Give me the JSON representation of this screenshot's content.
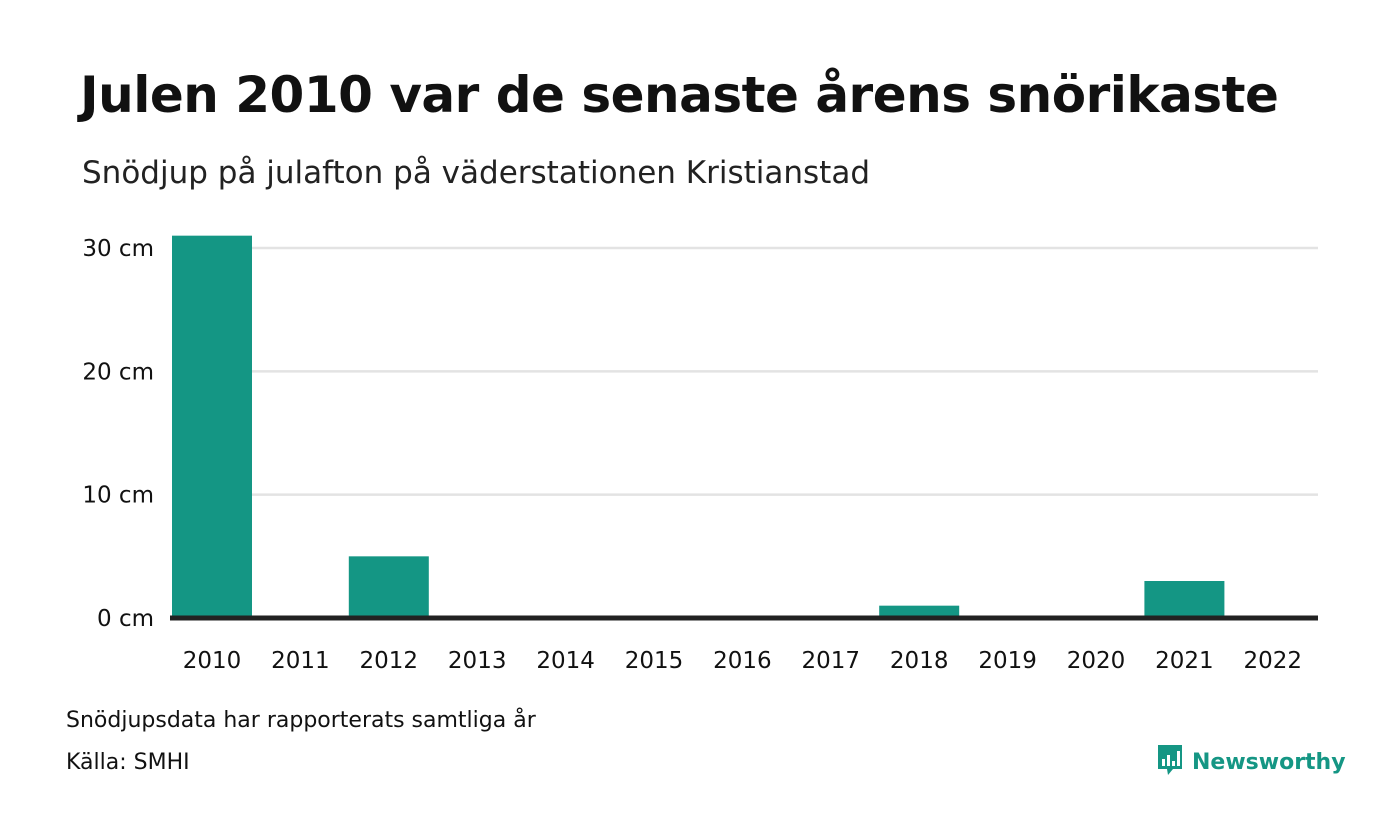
{
  "header": {
    "title": "Julen 2010 var de senaste årens snörikaste",
    "subtitle": "Snödjup på julafton på väderstationen Kristianstad"
  },
  "footer": {
    "note": "Snödjupsdata har rapporterats samtliga år",
    "source": "Källa: SMHI",
    "brand": "Newsworthy",
    "brand_icon": "newsworthy-logo-icon"
  },
  "colors": {
    "bar": "#149684",
    "grid": "#e3e3e3",
    "baseline": "#222222",
    "brand": "#159684"
  },
  "chart_data": {
    "type": "bar",
    "title": "Julen 2010 var de senaste årens snörikaste",
    "subtitle": "Snödjup på julafton på väderstationen Kristianstad",
    "categories": [
      "2010",
      "2011",
      "2012",
      "2013",
      "2014",
      "2015",
      "2016",
      "2017",
      "2018",
      "2019",
      "2020",
      "2021",
      "2022"
    ],
    "values": [
      31,
      0,
      5,
      0,
      0,
      0,
      0,
      0,
      1,
      0,
      0,
      3,
      0
    ],
    "unit": "cm",
    "yticks": [
      0,
      10,
      20,
      30
    ],
    "ytick_labels": [
      "0 cm",
      "10 cm",
      "20 cm",
      "30 cm"
    ],
    "ylim": [
      0,
      30
    ],
    "grid": true,
    "legend": "none"
  }
}
